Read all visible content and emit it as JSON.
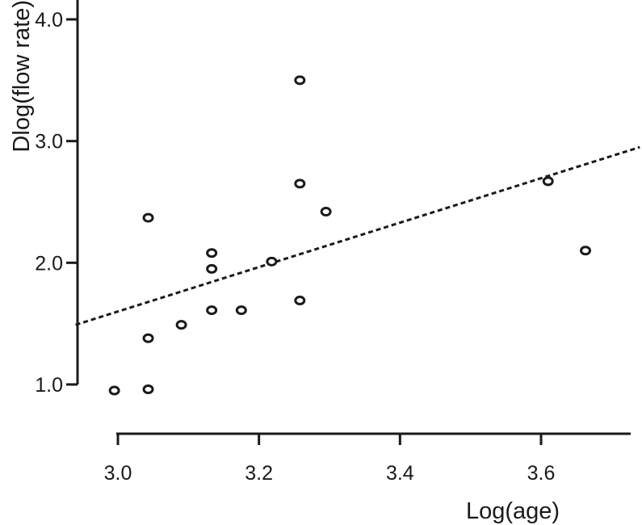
{
  "chart_data": {
    "type": "scatter",
    "title": "",
    "xlabel": "Log(age)",
    "ylabel": "Dlog(flow rate)",
    "xlim": [
      2.97,
      3.73
    ],
    "ylim": [
      0.75,
      4.0
    ],
    "x_ticks": [
      3.0,
      3.2,
      3.4,
      3.6
    ],
    "x_tick_labels": [
      "3.0",
      "3.2",
      "3.4",
      "3.6"
    ],
    "y_ticks": [
      1.0,
      2.0,
      3.0,
      4.0
    ],
    "y_tick_labels": [
      "1.0",
      "2.0",
      "3.0",
      "4.0"
    ],
    "grid": false,
    "series": [
      {
        "marker": "open-circle",
        "points": [
          {
            "x": 2.995,
            "y": 0.95
          },
          {
            "x": 3.043,
            "y": 0.96
          },
          {
            "x": 3.043,
            "y": 1.38
          },
          {
            "x": 3.043,
            "y": 2.37
          },
          {
            "x": 3.09,
            "y": 1.49
          },
          {
            "x": 3.133,
            "y": 1.61
          },
          {
            "x": 3.133,
            "y": 1.95
          },
          {
            "x": 3.133,
            "y": 2.08
          },
          {
            "x": 3.175,
            "y": 1.61
          },
          {
            "x": 3.218,
            "y": 2.01
          },
          {
            "x": 3.258,
            "y": 1.69
          },
          {
            "x": 3.258,
            "y": 2.65
          },
          {
            "x": 3.258,
            "y": 3.5
          },
          {
            "x": 3.295,
            "y": 2.42
          },
          {
            "x": 3.61,
            "y": 2.67
          },
          {
            "x": 3.663,
            "y": 2.1
          }
        ]
      }
    ],
    "fit_line": {
      "style": "dashed",
      "x": [
        2.94,
        3.74
      ],
      "y": [
        1.49,
        2.95
      ]
    },
    "colors": {
      "ink": "#1a1a1a",
      "marker_fill": "#ffffff"
    }
  }
}
